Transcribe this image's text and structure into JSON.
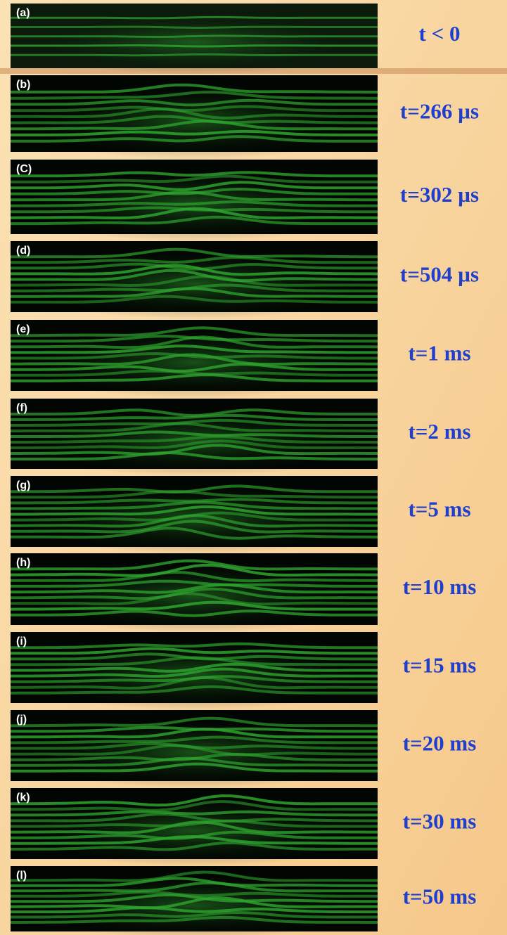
{
  "panels": [
    {
      "label": "(a)",
      "time": "t < 0"
    },
    {
      "label": "(b)",
      "time": "t=266 µs"
    },
    {
      "label": "(C)",
      "time": "t=302 µs"
    },
    {
      "label": "(d)",
      "time": "t=504 µs"
    },
    {
      "label": "(e)",
      "time": "t=1 ms"
    },
    {
      "label": "(f)",
      "time": "t=2 ms"
    },
    {
      "label": "(g)",
      "time": "t=5 ms"
    },
    {
      "label": "(h)",
      "time": "t=10 ms"
    },
    {
      "label": "(i)",
      "time": "t=15 ms"
    },
    {
      "label": "(j)",
      "time": "t=20 ms"
    },
    {
      "label": "(k)",
      "time": "t=30 ms"
    },
    {
      "label": "(l)",
      "time": "t=50 ms"
    }
  ]
}
